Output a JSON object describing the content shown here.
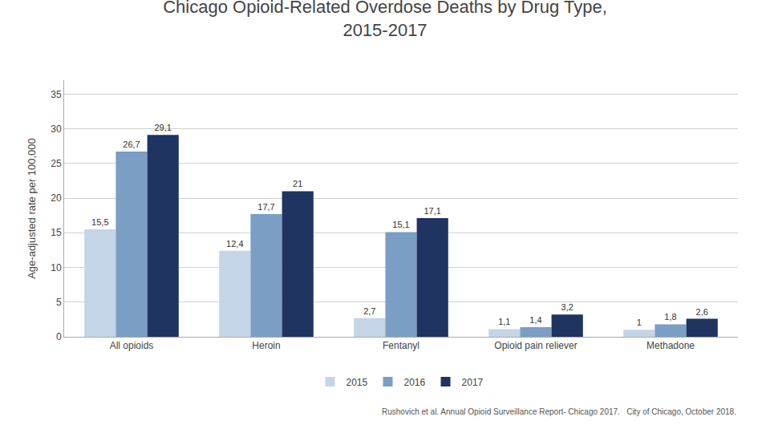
{
  "chart_data": {
    "type": "bar",
    "title": "Chicago Opioid-Related Overdose Deaths by Drug Type,\n2015-2017",
    "ylabel": "Age-adjusted rate per 100,000",
    "categories": [
      "All opioids",
      "Heroin",
      "Fentanyl",
      "Opioid pain reliever",
      "Methadone"
    ],
    "series": [
      {
        "name": "2015",
        "color": "#c5d5e8",
        "values": [
          15.5,
          12.4,
          2.7,
          1.1,
          1.0
        ],
        "value_labels": [
          "15,5",
          "12,4",
          "2,7",
          "1,1",
          "1"
        ]
      },
      {
        "name": "2016",
        "color": "#7a9ec4",
        "values": [
          26.7,
          17.7,
          15.1,
          1.4,
          1.8
        ],
        "value_labels": [
          "26,7",
          "17,7",
          "15,1",
          "1,4",
          "1,8"
        ]
      },
      {
        "name": "2017",
        "color": "#1f3461",
        "values": [
          29.1,
          21.0,
          17.1,
          3.2,
          2.6
        ],
        "value_labels": [
          "29,1",
          "21",
          "17,1",
          "3,2",
          "2,6"
        ]
      }
    ],
    "ylim": [
      0,
      37
    ],
    "yticks": [
      0,
      5,
      10,
      15,
      20,
      25,
      30,
      35
    ],
    "grid": true,
    "legend": "bottom",
    "data_labels": true,
    "annotations": [
      "Rushovich et al. Annual Opioid Surveillance Report- Chicago 2017.   City of Chicago, October 2018."
    ]
  }
}
